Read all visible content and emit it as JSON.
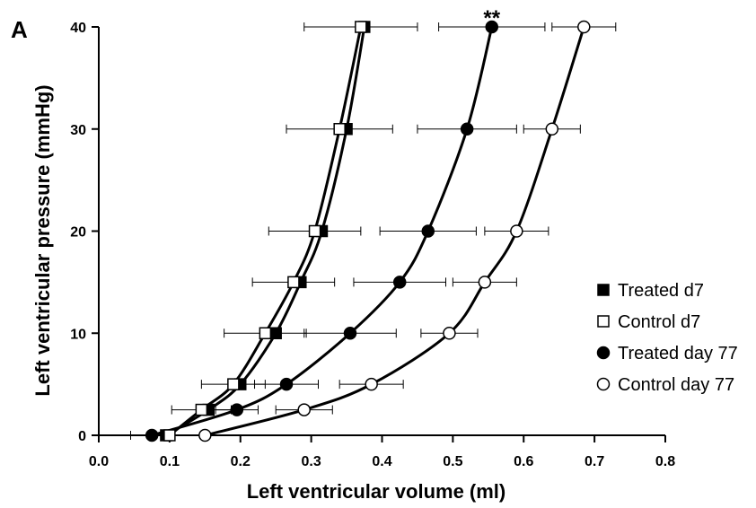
{
  "chart_data": {
    "type": "scatter",
    "panel_label": "A",
    "xlabel": "Left ventricular volume (ml)",
    "ylabel": "Left ventricular pressure (mmHg)",
    "xlim": [
      0.0,
      0.8
    ],
    "ylim": [
      0,
      40
    ],
    "xticks": [
      "0.0",
      "0.1",
      "0.2",
      "0.3",
      "0.4",
      "0.5",
      "0.6",
      "0.7",
      "0.8"
    ],
    "yticks": [
      "0",
      "10",
      "20",
      "30",
      "40"
    ],
    "grid": false,
    "legend_position": "right",
    "annotation": {
      "text": "**",
      "x": 0.555,
      "y": 40
    },
    "series": [
      {
        "name": "Treated d7",
        "marker": "filled-square",
        "points": [
          {
            "x": 0.095,
            "y": 0,
            "err": null
          },
          {
            "x": 0.155,
            "y": 2.5,
            "err": null
          },
          {
            "x": 0.2,
            "y": 5,
            "err": null
          },
          {
            "x": 0.25,
            "y": 10,
            "err": null
          },
          {
            "x": 0.285,
            "y": 15,
            "err": null
          },
          {
            "x": 0.315,
            "y": 20,
            "err": null
          },
          {
            "x": 0.35,
            "y": 30,
            "err": null
          },
          {
            "x": 0.375,
            "y": 40,
            "err": null
          }
        ]
      },
      {
        "name": "Control d7",
        "marker": "open-square",
        "points": [
          {
            "x": 0.1,
            "y": 0,
            "err": 0.055
          },
          {
            "x": 0.145,
            "y": 2.5,
            "err": 0.042
          },
          {
            "x": 0.19,
            "y": 5,
            "err": 0.045
          },
          {
            "x": 0.235,
            "y": 10,
            "err": 0.058
          },
          {
            "x": 0.275,
            "y": 15,
            "err": 0.058
          },
          {
            "x": 0.305,
            "y": 20,
            "err": 0.065
          },
          {
            "x": 0.34,
            "y": 30,
            "err": 0.075
          },
          {
            "x": 0.37,
            "y": 40,
            "err": 0.08
          }
        ]
      },
      {
        "name": "Treated day 77",
        "marker": "filled-circle",
        "points": [
          {
            "x": 0.075,
            "y": 0,
            "err": null
          },
          {
            "x": 0.195,
            "y": 2.5,
            "err": 0.03
          },
          {
            "x": 0.265,
            "y": 5,
            "err": 0.045
          },
          {
            "x": 0.355,
            "y": 10,
            "err": 0.065
          },
          {
            "x": 0.425,
            "y": 15,
            "err": 0.065
          },
          {
            "x": 0.465,
            "y": 20,
            "err": 0.068
          },
          {
            "x": 0.52,
            "y": 30,
            "err": 0.07
          },
          {
            "x": 0.555,
            "y": 40,
            "err": 0.075
          }
        ]
      },
      {
        "name": "Control day 77",
        "marker": "open-circle",
        "points": [
          {
            "x": 0.15,
            "y": 0,
            "err": null
          },
          {
            "x": 0.29,
            "y": 2.5,
            "err": 0.04
          },
          {
            "x": 0.385,
            "y": 5,
            "err": 0.045
          },
          {
            "x": 0.495,
            "y": 10,
            "err": 0.04
          },
          {
            "x": 0.545,
            "y": 15,
            "err": 0.045
          },
          {
            "x": 0.59,
            "y": 20,
            "err": 0.045
          },
          {
            "x": 0.64,
            "y": 30,
            "err": 0.04
          },
          {
            "x": 0.685,
            "y": 40,
            "err": 0.045
          }
        ]
      }
    ]
  }
}
